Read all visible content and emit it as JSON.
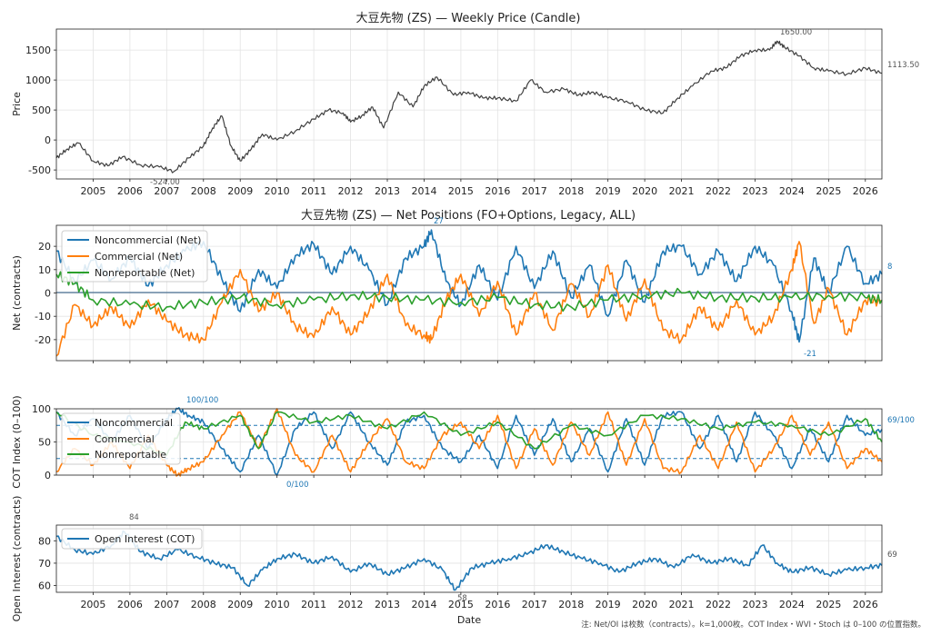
{
  "footer_note": "注: Net/OI は枚数（contracts）。k=1,000枚。COT Index・WVI・Stoch は 0–100 の位置指数。",
  "x_axis": {
    "label": "Date",
    "tick_labels": [
      "2005",
      "2006",
      "2007",
      "2008",
      "2009",
      "2010",
      "2011",
      "2012",
      "2013",
      "2014",
      "2015",
      "2016",
      "2017",
      "2018",
      "2019",
      "2020",
      "2021",
      "2022",
      "2023",
      "2024",
      "2025",
      "2026"
    ],
    "range": [
      2004.0,
      2026.45
    ]
  },
  "colors": {
    "noncommercial": "#1f77b4",
    "commercial": "#ff7f0e",
    "nonreportable": "#2ca02c",
    "price": "#404040",
    "grid": "#e3e3e3"
  },
  "chart_data": [
    {
      "type": "line",
      "title": "大豆先物 (ZS) — Weekly Price (Candle)",
      "ylabel": "Price",
      "ylim": [
        -650,
        1850
      ],
      "ytick_labels": [
        "-500",
        "0",
        "500",
        "1000",
        "1500"
      ],
      "series": [
        {
          "values_x": [
            2004.0,
            2004.3,
            2004.6,
            2005.0,
            2005.4,
            2005.8,
            2006.3,
            2006.8,
            2007.2,
            2007.6,
            2008.0,
            2008.25,
            2008.5,
            2008.75,
            2009.0,
            2009.3,
            2009.6,
            2010.0,
            2010.5,
            2011.0,
            2011.4,
            2011.8,
            2012.0,
            2012.3,
            2012.6,
            2012.9,
            2013.3,
            2013.7,
            2014.0,
            2014.35,
            2014.8,
            2015.2,
            2015.6,
            2016.0,
            2016.5,
            2016.9,
            2017.3,
            2017.8,
            2018.2,
            2018.6,
            2019.0,
            2019.5,
            2020.0,
            2020.5,
            2020.9,
            2021.3,
            2021.8,
            2022.2,
            2022.6,
            2023.0,
            2023.4,
            2023.6,
            2023.8,
            2024.2,
            2024.6,
            2025.0,
            2025.5,
            2026.0,
            2026.45
          ],
          "values_y": [
            -300,
            -150,
            -50,
            -350,
            -430,
            -280,
            -420,
            -450,
            -524,
            -300,
            -100,
            200,
            400,
            -100,
            -350,
            -150,
            100,
            0,
            150,
            350,
            500,
            450,
            300,
            400,
            550,
            200,
            800,
            550,
            900,
            1050,
            750,
            800,
            700,
            700,
            650,
            1000,
            800,
            850,
            750,
            800,
            700,
            650,
            500,
            450,
            700,
            900,
            1150,
            1200,
            1400,
            1500,
            1500,
            1650,
            1550,
            1400,
            1200,
            1150,
            1100,
            1200,
            1113.5
          ]
        }
      ],
      "annotations": [
        "1650.00",
        "-524.00",
        "1113.50"
      ]
    },
    {
      "type": "line",
      "title": "大豆先物 (ZS) — Net Positions (FO+Options, Legacy, ALL)",
      "ylabel": "Net (contracts)",
      "ylim": [
        -29,
        29
      ],
      "ytick_labels": [
        "-20",
        "-10",
        "0",
        "10",
        "20"
      ],
      "series": [
        {
          "name": "Noncommercial (Net)",
          "values_x": [
            2004.0,
            2004.5,
            2005.0,
            2005.5,
            2006.0,
            2006.5,
            2007.0,
            2007.5,
            2008.0,
            2008.5,
            2009.0,
            2009.5,
            2010.0,
            2010.5,
            2011.0,
            2011.5,
            2012.0,
            2012.5,
            2013.0,
            2013.5,
            2014.0,
            2014.2,
            2014.6,
            2015.0,
            2015.5,
            2016.0,
            2016.5,
            2017.0,
            2017.5,
            2018.0,
            2018.5,
            2019.0,
            2019.5,
            2020.0,
            2020.5,
            2021.0,
            2021.5,
            2022.0,
            2022.5,
            2023.0,
            2023.5,
            2024.0,
            2024.2,
            2024.6,
            2025.0,
            2025.5,
            2026.0,
            2026.45
          ],
          "values_y": [
            18,
            5,
            14,
            6,
            15,
            3,
            12,
            18,
            22,
            6,
            -8,
            10,
            2,
            16,
            21,
            8,
            20,
            10,
            -5,
            15,
            20,
            27,
            5,
            -5,
            12,
            -3,
            20,
            2,
            18,
            -2,
            12,
            -10,
            14,
            -4,
            18,
            20,
            8,
            18,
            5,
            20,
            12,
            -8,
            -21,
            15,
            0,
            20,
            4,
            8
          ]
        },
        {
          "name": "Commercial (Net)",
          "values_x": [
            2004.0,
            2004.5,
            2005.0,
            2005.5,
            2006.0,
            2006.5,
            2007.0,
            2007.5,
            2008.0,
            2008.5,
            2009.0,
            2009.5,
            2010.0,
            2010.5,
            2011.0,
            2011.5,
            2012.0,
            2012.5,
            2013.0,
            2013.5,
            2014.0,
            2014.2,
            2014.6,
            2015.0,
            2015.5,
            2016.0,
            2016.5,
            2017.0,
            2017.5,
            2018.0,
            2018.5,
            2019.0,
            2019.5,
            2020.0,
            2020.5,
            2021.0,
            2021.5,
            2022.0,
            2022.5,
            2023.0,
            2023.5,
            2024.0,
            2024.2,
            2024.6,
            2025.0,
            2025.5,
            2026.0,
            2026.45
          ],
          "values_y": [
            -27,
            -5,
            -14,
            -6,
            -15,
            -3,
            -12,
            -18,
            -20,
            -4,
            10,
            -8,
            0,
            -14,
            -19,
            -6,
            -18,
            -8,
            8,
            -14,
            -18,
            -20,
            -3,
            8,
            -10,
            5,
            -18,
            0,
            -16,
            4,
            -10,
            12,
            -12,
            6,
            -16,
            -20,
            -6,
            -16,
            -3,
            -18,
            -10,
            10,
            22,
            -13,
            2,
            -18,
            -3,
            -4
          ]
        },
        {
          "name": "Nonreportable (Net)",
          "values_x": [
            2004.0,
            2004.5,
            2005.0,
            2006.0,
            2007.0,
            2008.0,
            2009.0,
            2010.0,
            2011.0,
            2012.0,
            2013.0,
            2014.0,
            2015.0,
            2016.0,
            2017.0,
            2018.0,
            2019.0,
            2020.0,
            2021.0,
            2022.0,
            2023.0,
            2024.0,
            2025.0,
            2026.0,
            2026.45
          ],
          "values_y": [
            8,
            4,
            -3,
            -5,
            -6,
            -4,
            -2,
            -5,
            -3,
            -1,
            -2,
            -3,
            -4,
            -2,
            -5,
            -6,
            -3,
            -1,
            0,
            -2,
            -2,
            -2,
            -1,
            -2,
            -3
          ]
        }
      ],
      "annotations": [
        "27",
        "-21",
        "8"
      ]
    },
    {
      "type": "line",
      "ylabel": "COT Index (0–100)",
      "ylim": [
        0,
        100
      ],
      "ytick_labels": [
        "0",
        "50",
        "100"
      ],
      "reference_lines": [
        25,
        75
      ],
      "series": [
        {
          "name": "Noncommercial",
          "values_x": [
            2004.0,
            2004.5,
            2005.0,
            2005.5,
            2006.0,
            2006.5,
            2007.0,
            2007.3,
            2007.6,
            2008.0,
            2008.5,
            2009.0,
            2009.5,
            2010.0,
            2010.5,
            2011.0,
            2011.5,
            2012.0,
            2012.5,
            2013.0,
            2013.5,
            2014.0,
            2014.5,
            2015.0,
            2015.5,
            2016.0,
            2016.5,
            2017.0,
            2017.5,
            2018.0,
            2018.5,
            2019.0,
            2019.5,
            2020.0,
            2020.5,
            2021.0,
            2021.5,
            2022.0,
            2022.5,
            2023.0,
            2023.5,
            2024.0,
            2024.5,
            2025.0,
            2025.5,
            2026.0,
            2026.45
          ],
          "values_y": [
            95,
            60,
            85,
            50,
            90,
            40,
            85,
            100,
            90,
            80,
            40,
            5,
            60,
            0,
            70,
            95,
            40,
            95,
            50,
            15,
            80,
            90,
            40,
            20,
            60,
            10,
            90,
            30,
            85,
            20,
            70,
            5,
            85,
            15,
            90,
            95,
            40,
            90,
            20,
            95,
            60,
            10,
            70,
            20,
            90,
            60,
            69
          ]
        },
        {
          "name": "Commercial",
          "values_x": [
            2004.0,
            2004.5,
            2005.0,
            2005.5,
            2006.0,
            2006.5,
            2007.0,
            2007.3,
            2007.6,
            2008.0,
            2008.5,
            2009.0,
            2009.5,
            2010.0,
            2010.5,
            2011.0,
            2011.5,
            2012.0,
            2012.5,
            2013.0,
            2013.5,
            2014.0,
            2014.5,
            2015.0,
            2015.5,
            2016.0,
            2016.5,
            2017.0,
            2017.5,
            2018.0,
            2018.5,
            2019.0,
            2019.5,
            2020.0,
            2020.5,
            2021.0,
            2021.5,
            2022.0,
            2022.5,
            2023.0,
            2023.5,
            2024.0,
            2024.5,
            2025.0,
            2025.5,
            2026.0,
            2026.45
          ],
          "values_y": [
            5,
            40,
            15,
            50,
            10,
            60,
            15,
            0,
            10,
            20,
            60,
            95,
            40,
            100,
            30,
            5,
            60,
            5,
            50,
            85,
            20,
            10,
            60,
            80,
            40,
            90,
            10,
            70,
            15,
            80,
            30,
            95,
            15,
            85,
            10,
            5,
            60,
            10,
            80,
            5,
            40,
            90,
            30,
            80,
            10,
            40,
            20
          ]
        },
        {
          "name": "Nonreportable",
          "values_x": [
            2004.0,
            2005.0,
            2006.0,
            2007.0,
            2007.5,
            2008.0,
            2009.0,
            2009.5,
            2010.0,
            2011.0,
            2012.0,
            2013.0,
            2014.0,
            2015.0,
            2016.0,
            2017.0,
            2018.0,
            2019.0,
            2020.0,
            2021.0,
            2022.0,
            2023.0,
            2024.0,
            2025.0,
            2026.0,
            2026.45
          ],
          "values_y": [
            95,
            60,
            50,
            30,
            80,
            70,
            90,
            40,
            95,
            80,
            90,
            70,
            95,
            60,
            80,
            40,
            75,
            60,
            90,
            85,
            70,
            80,
            75,
            60,
            85,
            50
          ]
        }
      ],
      "annotations": [
        "100/100",
        "0/100",
        "69/100"
      ]
    },
    {
      "type": "line",
      "ylabel": "Open Interest (contracts)",
      "ylim": [
        57,
        87
      ],
      "ytick_labels": [
        "60",
        "70",
        "80"
      ],
      "series": [
        {
          "name": "Open Interest (COT)",
          "values_x": [
            2004.0,
            2004.5,
            2005.0,
            2005.5,
            2005.85,
            2006.3,
            2006.8,
            2007.3,
            2007.8,
            2008.3,
            2008.8,
            2009.2,
            2009.6,
            2010.0,
            2010.5,
            2011.0,
            2011.5,
            2012.0,
            2012.5,
            2013.0,
            2013.5,
            2014.0,
            2014.5,
            2014.85,
            2015.3,
            2015.8,
            2016.3,
            2016.8,
            2017.3,
            2017.8,
            2018.3,
            2018.8,
            2019.3,
            2019.8,
            2020.3,
            2020.8,
            2021.3,
            2021.8,
            2022.3,
            2022.8,
            2023.2,
            2023.6,
            2024.0,
            2024.5,
            2025.0,
            2025.5,
            2026.0,
            2026.45
          ],
          "values_y": [
            82,
            76,
            74,
            78,
            84,
            75,
            72,
            76,
            73,
            70,
            68,
            60,
            67,
            72,
            74,
            70,
            73,
            66,
            70,
            65,
            68,
            72,
            67,
            58,
            68,
            70,
            72,
            74,
            78,
            75,
            72,
            70,
            66,
            70,
            72,
            68,
            74,
            70,
            72,
            69,
            78,
            70,
            66,
            68,
            65,
            67,
            68,
            69
          ]
        }
      ],
      "annotations": [
        "84",
        "58",
        "69"
      ]
    }
  ]
}
